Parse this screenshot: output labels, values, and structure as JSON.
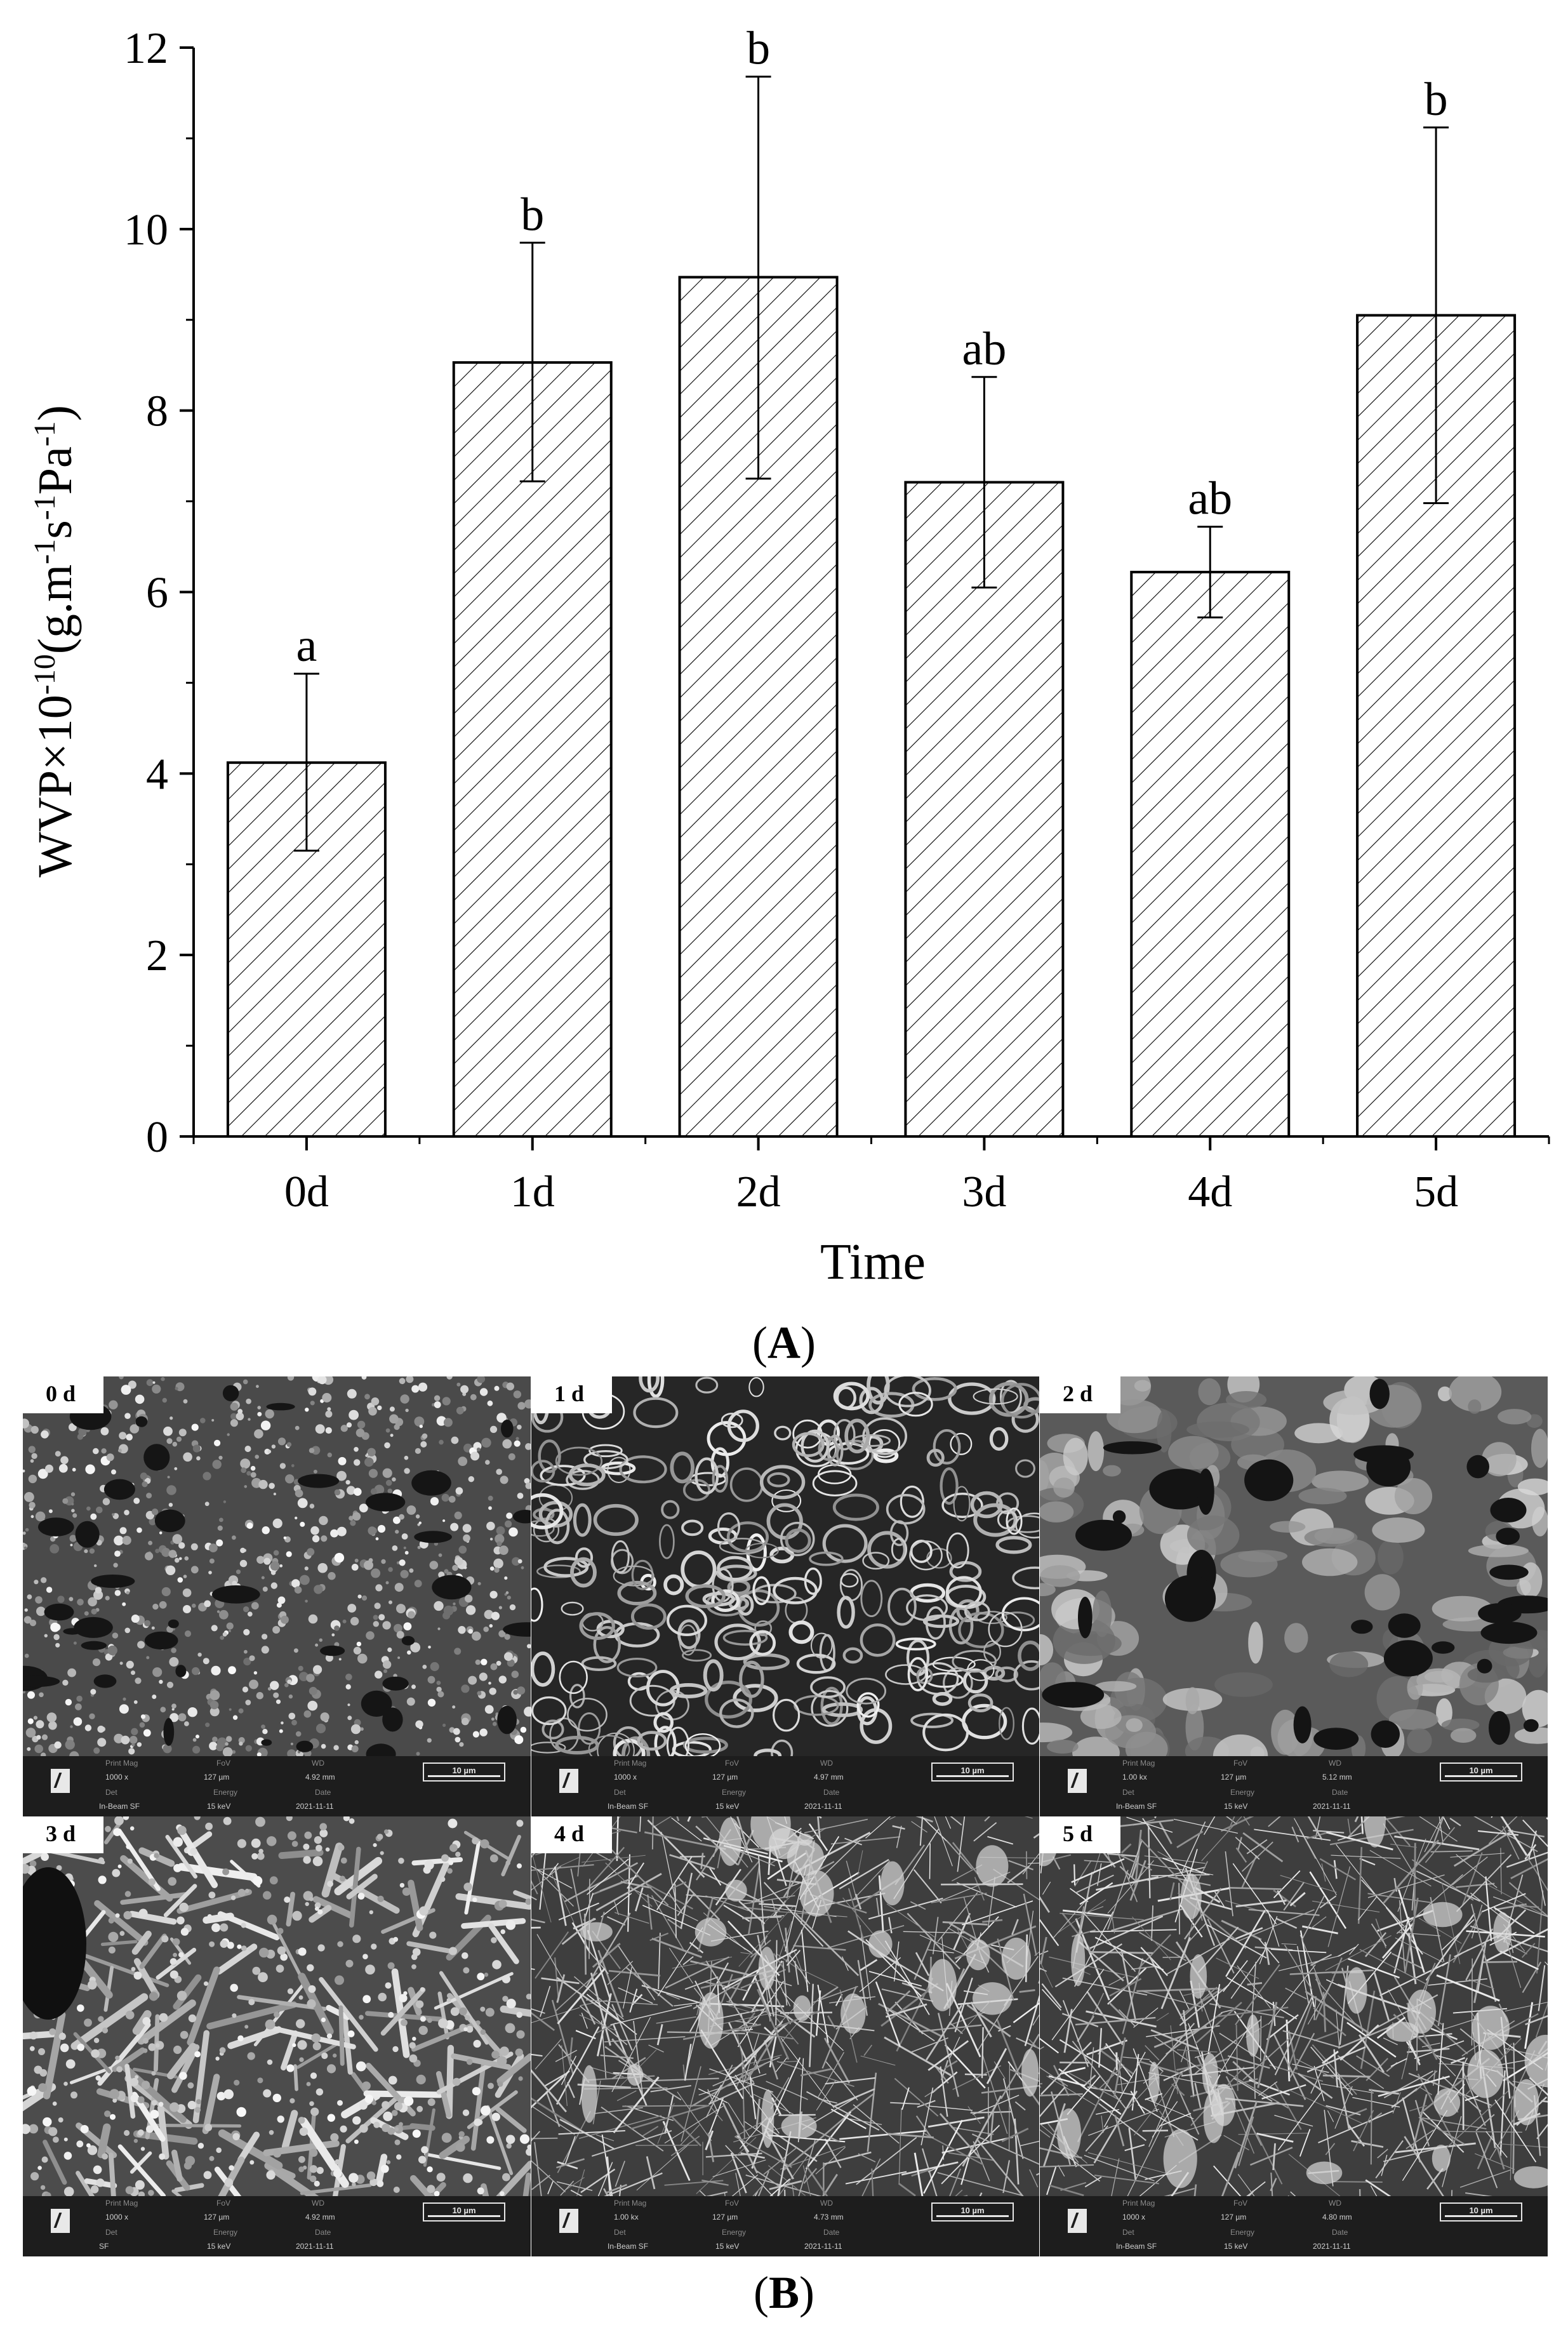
{
  "chart_data": {
    "type": "bar",
    "categories": [
      "0d",
      "1d",
      "2d",
      "3d",
      "4d",
      "5d"
    ],
    "values": [
      4.12,
      8.53,
      9.47,
      7.21,
      6.22,
      9.05
    ],
    "error_high": [
      5.1,
      9.85,
      11.68,
      8.37,
      6.72,
      11.12
    ],
    "error_low": [
      3.15,
      7.22,
      7.25,
      6.05,
      5.72,
      6.98
    ],
    "significance": [
      "a",
      "b",
      "b",
      "ab",
      "ab",
      "b"
    ],
    "xlabel": "Time",
    "ylabel": "WVP×10⁻¹⁰(g.m⁻¹s⁻¹Pa⁻¹)",
    "ylim": [
      0,
      12
    ],
    "yticks": [
      "0",
      "2",
      "4",
      "6",
      "8",
      "10",
      "12"
    ],
    "bar_fill": "diagonal-hatch",
    "bar_color": "#000000",
    "grid": false,
    "panel_label": "A"
  },
  "sem": {
    "panel_label": "B",
    "header_labels": {
      "print_mag": "Print Mag",
      "fov": "FoV",
      "wd": "WD",
      "det": "Det",
      "energy": "Energy",
      "date": "Date"
    },
    "scale_bar": "10 µm",
    "panels": [
      {
        "day": "0 d",
        "print_mag": "1000 x",
        "fov": "127 µm",
        "wd": "4.92 mm",
        "det": "In-Beam SF",
        "energy": "15 keV",
        "date": "2021-11-11",
        "texture": "granular"
      },
      {
        "day": "1 d",
        "print_mag": "1000 x",
        "fov": "127 µm",
        "wd": "4.97 mm",
        "det": "In-Beam SF",
        "energy": "15 keV",
        "date": "2021-11-11",
        "texture": "porous"
      },
      {
        "day": "2 d",
        "print_mag": "1.00 kx",
        "fov": "127 µm",
        "wd": "5.12 mm",
        "det": "In-Beam SF",
        "energy": "15 keV",
        "date": "2021-11-11",
        "texture": "sheets"
      },
      {
        "day": "3 d",
        "print_mag": "1000 x",
        "fov": "127 µm",
        "wd": "4.92 mm",
        "det": "SF",
        "energy": "15 keV",
        "date": "2021-11-11",
        "texture": "rods"
      },
      {
        "day": "4 d",
        "print_mag": "1.00 kx",
        "fov": "127 µm",
        "wd": "4.73 mm",
        "det": "In-Beam SF",
        "energy": "15 keV",
        "date": "2021-11-11",
        "texture": "fibrous"
      },
      {
        "day": "5 d",
        "print_mag": "1000 x",
        "fov": "127 µm",
        "wd": "4.80 mm",
        "det": "In-Beam SF",
        "energy": "15 keV",
        "date": "2021-11-11",
        "texture": "fibrous"
      }
    ]
  }
}
